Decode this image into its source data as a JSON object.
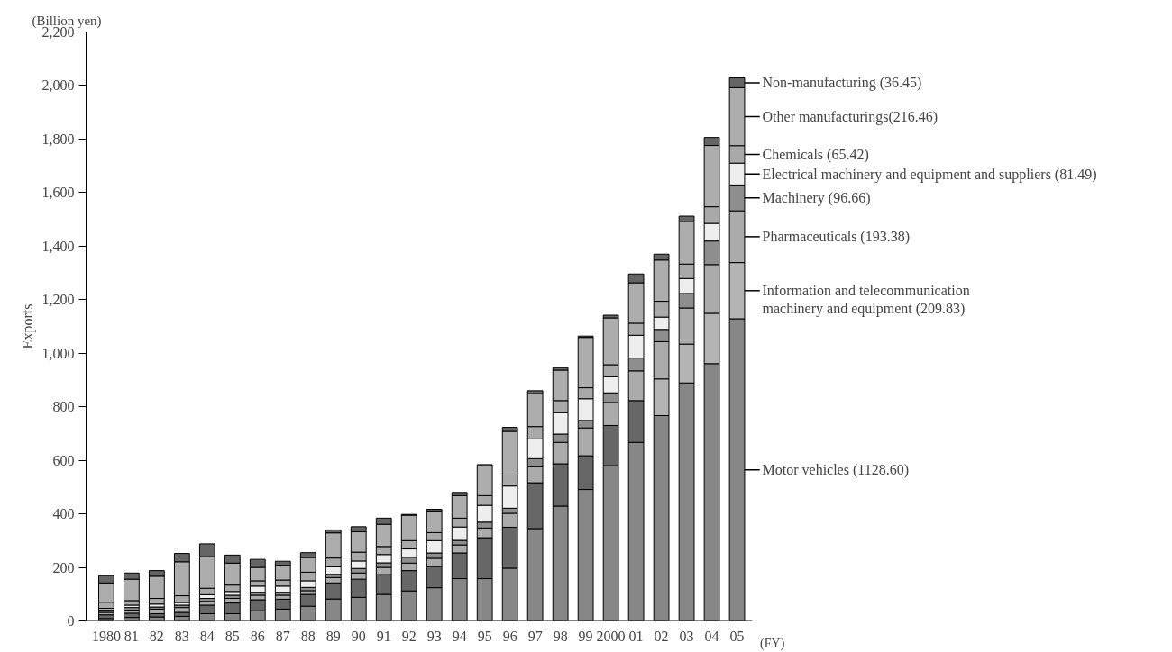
{
  "chart_data": {
    "type": "bar",
    "stacked": true,
    "ylabel": "Exports",
    "xlabel": "(FY)",
    "annotations": [
      "(Billion yen)"
    ],
    "categories": [
      "1980",
      "81",
      "82",
      "83",
      "84",
      "85",
      "86",
      "87",
      "88",
      "89",
      "90",
      "91",
      "92",
      "93",
      "94",
      "95",
      "96",
      "97",
      "98",
      "99",
      "2000",
      "01",
      "02",
      "03",
      "04",
      "05"
    ],
    "ylim": [
      0,
      2200
    ],
    "yticks": [
      0,
      200,
      400,
      600,
      800,
      {
        "value": 1000,
        "label": "1,000"
      },
      {
        "value": 1200,
        "label": "1,200"
      },
      {
        "value": 1400,
        "label": "1,400"
      },
      {
        "value": 1600,
        "label": "1,600"
      },
      {
        "value": 1800,
        "label": "1,800"
      },
      {
        "value": 2000,
        "label": "2,000"
      },
      {
        "value": 2200,
        "label": "2,200"
      }
    ],
    "grid": false,
    "legend": "right",
    "series": [
      {
        "name": "Motor vehicles (1128.60)",
        "color": "#878787",
        "values": [
          9,
          13,
          15,
          17,
          27,
          27,
          38,
          44,
          55,
          82,
          88,
          99,
          112,
          124,
          158,
          158,
          197,
          345,
          429,
          491,
          580,
          667,
          767,
          889,
          961,
          1128.6
        ]
      },
      {
        "name": "Information and telecommunication\nmachinery and equipment (209.83)",
        "color": "#676767",
        "colors": [
          "#676767",
          "#676767",
          "#676767",
          "#676767",
          "#676767",
          "#676767",
          "#676767",
          "#676767",
          "#676767",
          "#676767",
          "#676767",
          "#676767",
          "#676767",
          "#676767",
          "#676767",
          "#676767",
          "#676767",
          "#676767",
          "#676767",
          "#676767",
          "#676767",
          "#676767",
          "#b4b4b4",
          "#b4b4b4",
          "#b4b4b4",
          "#b4b4b4"
        ],
        "values": [
          14,
          16,
          12,
          15,
          32,
          40,
          41,
          37,
          44,
          60,
          68,
          74,
          76,
          79,
          96,
          153,
          153,
          171,
          158,
          126,
          150,
          156,
          137,
          145,
          188,
          209.83
        ]
      },
      {
        "name": "Pharmaceuticals (193.38)",
        "color": "#ababab",
        "values": [
          9,
          11,
          17,
          18,
          14,
          17,
          17,
          15,
          14,
          20,
          23,
          27,
          28,
          31,
          30,
          36,
          52,
          60,
          80,
          104,
          86,
          111,
          139,
          135,
          182,
          193.38
        ]
      },
      {
        "name": "Machinery (96.66)",
        "color": "#8e8e8e",
        "values": [
          9,
          10,
          8,
          9,
          11,
          12,
          11,
          11,
          12,
          12,
          17,
          17,
          22,
          20,
          17,
          22,
          19,
          30,
          31,
          28,
          36,
          48,
          46,
          54,
          88,
          96.66
        ]
      },
      {
        "name": "Electrical machinery and equipment and suppliers (81.49)",
        "color": "#eeeeee",
        "values": [
          6,
          9,
          11,
          10,
          14,
          14,
          23,
          23,
          25,
          28,
          28,
          31,
          31,
          46,
          50,
          63,
          83,
          74,
          80,
          81,
          60,
          85,
          46,
          56,
          66,
          81.49
        ]
      },
      {
        "name": "Chemicals (65.42)",
        "color": "#a9a9a9",
        "values": [
          23,
          17,
          21,
          25,
          24,
          24,
          20,
          23,
          32,
          33,
          33,
          30,
          31,
          30,
          33,
          36,
          41,
          46,
          45,
          41,
          45,
          45,
          59,
          54,
          62,
          65.42
        ]
      },
      {
        "name": "Other manufacturings(216.46)",
        "color": "#adadad",
        "values": [
          72,
          80,
          83,
          127,
          118,
          82,
          50,
          55,
          55,
          94,
          76,
          83,
          95,
          81,
          84,
          111,
          163,
          123,
          114,
          188,
          175,
          151,
          154,
          158,
          229,
          216.46
        ]
      },
      {
        "name": "Non-manufacturing (36.45)",
        "color": "#656565",
        "values": [
          27,
          23,
          21,
          31,
          48,
          30,
          30,
          15,
          18,
          11,
          19,
          23,
          3,
          6,
          12,
          5,
          15,
          11,
          9,
          5,
          10,
          33,
          22,
          21,
          30,
          36.45
        ]
      }
    ]
  }
}
